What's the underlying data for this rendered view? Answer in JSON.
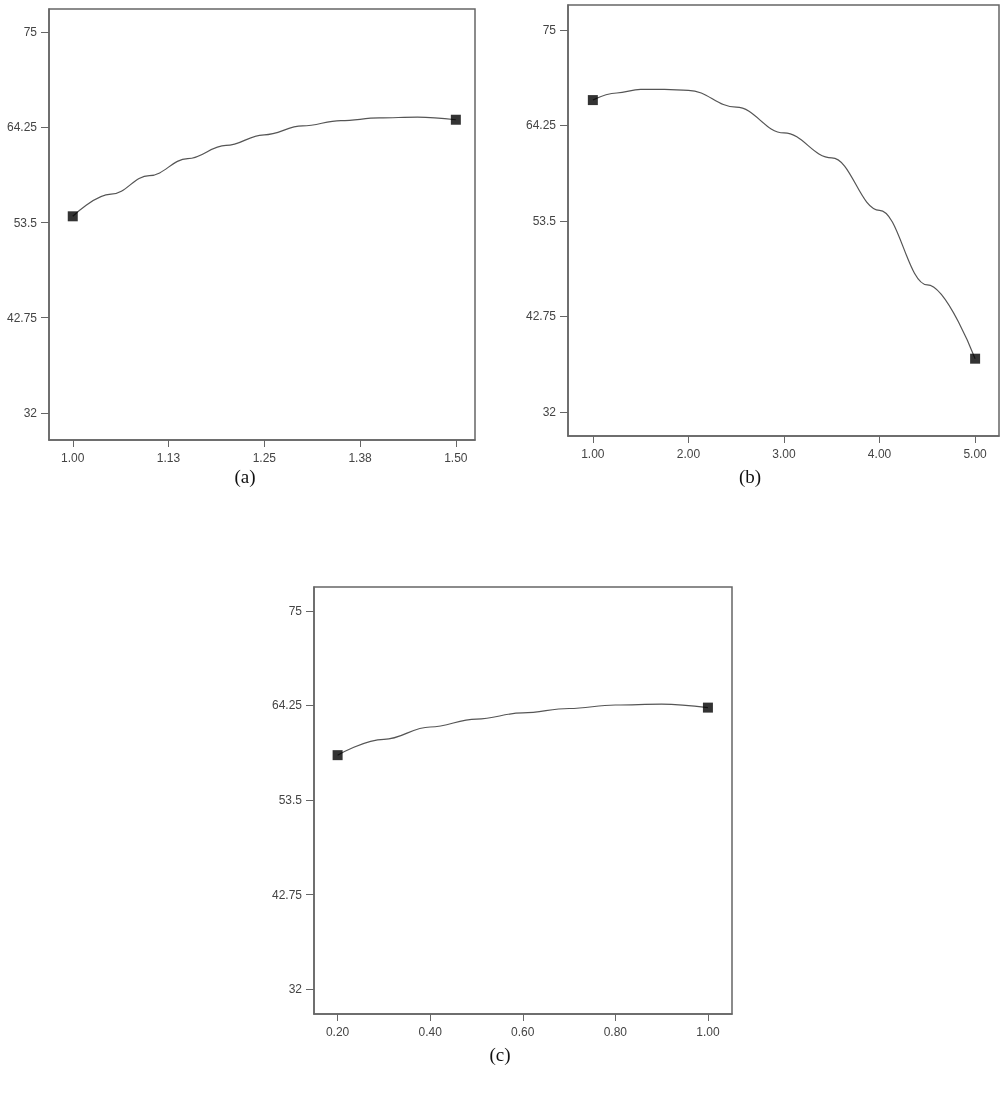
{
  "chart_data": [
    {
      "type": "line",
      "title": "(a)",
      "xlim": [
        0.969,
        1.525
      ],
      "ylim": [
        28.95,
        77.6
      ],
      "grid": false,
      "xticks": [
        {
          "value": 1,
          "label": "1.00"
        },
        {
          "value": 1.125,
          "label": "1.13"
        },
        {
          "value": 1.25,
          "label": "1.25"
        },
        {
          "value": 1.375,
          "label": "1.38"
        },
        {
          "value": 1.5,
          "label": "1.50"
        }
      ],
      "yticks": [
        32,
        42.75,
        53.5,
        64.25,
        75
      ],
      "series": [
        {
          "color": "#555555",
          "marker": "none",
          "x": [
            1.0,
            1.05,
            1.1,
            1.15,
            1.2,
            1.25,
            1.3,
            1.35,
            1.4,
            1.45,
            1.5
          ],
          "values": [
            54.2,
            56.7,
            58.8,
            60.7,
            62.2,
            63.4,
            64.4,
            65.0,
            65.3,
            65.4,
            65.1
          ]
        },
        {
          "type": "scatter",
          "color": "#000000",
          "marker": "square",
          "x": [
            1.0,
            1.5
          ],
          "values": [
            54.2,
            65.1
          ]
        }
      ]
    },
    {
      "type": "line",
      "title": "(b)",
      "xlim": [
        0.74,
        5.25
      ],
      "ylim": [
        29.3,
        77.8
      ],
      "grid": false,
      "xticks": [
        {
          "value": 1,
          "label": "1.00"
        },
        {
          "value": 2,
          "label": "2.00"
        },
        {
          "value": 3,
          "label": "3.00"
        },
        {
          "value": 4,
          "label": "4.00"
        },
        {
          "value": 5,
          "label": "5.00"
        }
      ],
      "yticks": [
        32,
        42.75,
        53.5,
        64.25,
        75
      ],
      "series": [
        {
          "color": "#555555",
          "marker": "none",
          "x": [
            1.0,
            1.25,
            1.5,
            1.75,
            2.0,
            2.5,
            3.0,
            3.5,
            4.0,
            4.5,
            5.0
          ],
          "values": [
            67.1,
            67.9,
            68.3,
            68.3,
            68.2,
            66.3,
            63.4,
            60.6,
            54.7,
            46.3,
            38.0
          ]
        },
        {
          "type": "scatter",
          "color": "#000000",
          "marker": "square",
          "x": [
            1.0,
            5.0
          ],
          "values": [
            67.1,
            38.0
          ]
        }
      ]
    },
    {
      "type": "line",
      "title": "(c)",
      "xlim": [
        0.149,
        1.052
      ],
      "ylim": [
        29.2,
        77.7
      ],
      "grid": false,
      "xticks": [
        {
          "value": 0.2,
          "label": "0.20"
        },
        {
          "value": 0.4,
          "label": "0.40"
        },
        {
          "value": 0.6,
          "label": "0.60"
        },
        {
          "value": 0.8,
          "label": "0.80"
        },
        {
          "value": 1,
          "label": "1.00"
        }
      ],
      "yticks": [
        32,
        42.75,
        53.5,
        64.25,
        75
      ],
      "series": [
        {
          "color": "#555555",
          "marker": "none",
          "x": [
            0.2,
            0.3,
            0.4,
            0.5,
            0.6,
            0.7,
            0.8,
            0.9,
            1.0
          ],
          "values": [
            58.6,
            60.4,
            61.8,
            62.7,
            63.4,
            63.9,
            64.3,
            64.4,
            64.0
          ]
        },
        {
          "type": "scatter",
          "color": "#000000",
          "marker": "square",
          "x": [
            0.2,
            1.0
          ],
          "values": [
            58.6,
            64.0
          ]
        }
      ]
    }
  ]
}
